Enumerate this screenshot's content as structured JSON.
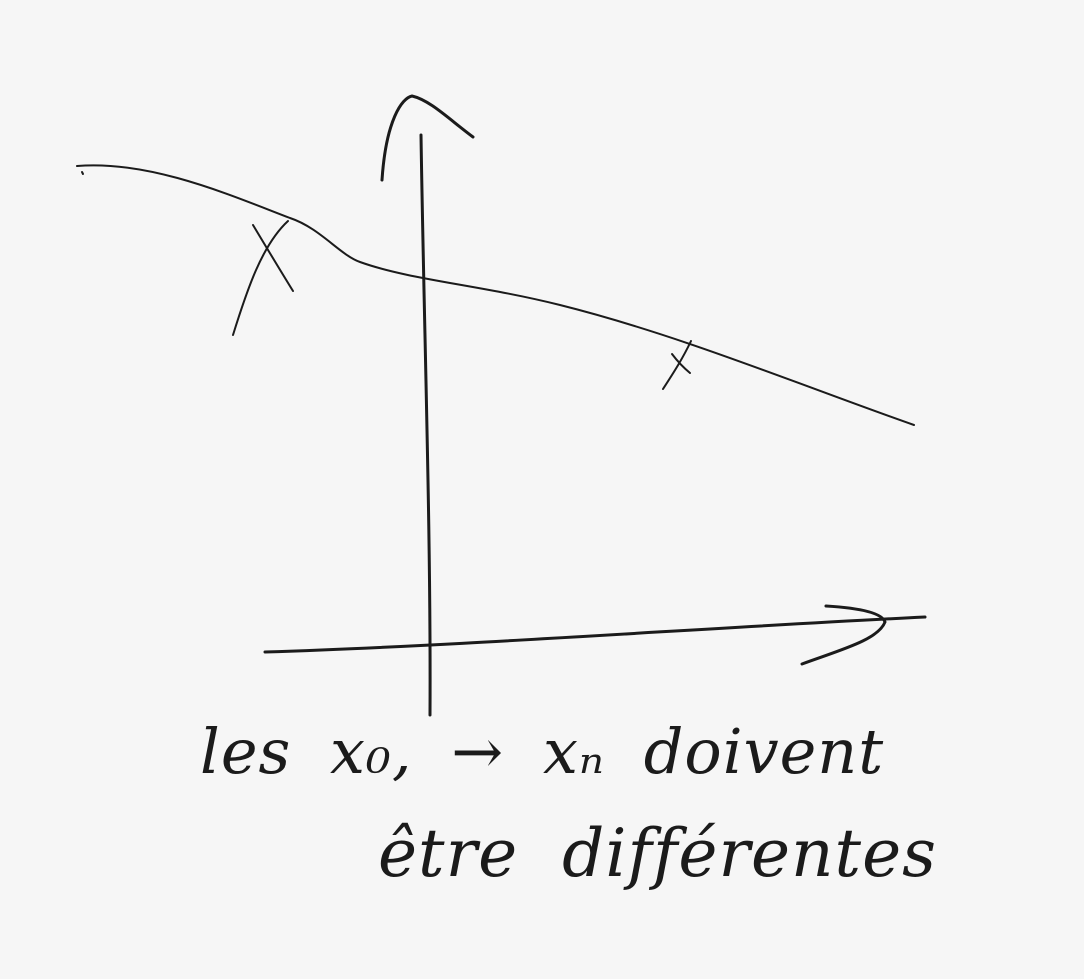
{
  "canvas": {
    "background_color": "#f6f6f6",
    "ink_color": "#1b1b1b"
  },
  "sketch": {
    "elements": [
      "y-axis-arrow",
      "x-axis-arrow",
      "decreasing-curve",
      "cross-mark-left",
      "cross-mark-right"
    ]
  },
  "note": {
    "line1": "les x₀, → xₙ doivent",
    "line2": "être différentes"
  }
}
